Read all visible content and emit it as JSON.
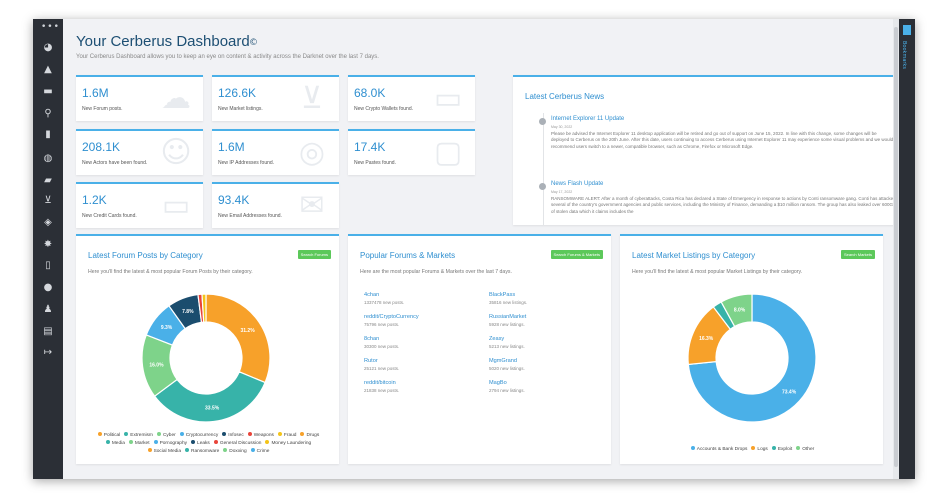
{
  "sidebar": {
    "dots": "•••",
    "icons": [
      "dashboard-icon",
      "bell-icon",
      "folder-icon",
      "search-icon",
      "book-icon",
      "bug-icon",
      "chat-icon",
      "cart-icon",
      "shield-icon",
      "forum-icon",
      "badge-icon",
      "comments-icon",
      "user-icon",
      "building-icon",
      "logout-icon"
    ]
  },
  "rightbar": {
    "label": "Bookmarks"
  },
  "header": {
    "title": "Your Cerberus Dashboard",
    "title_icon": "©",
    "subtitle": "Your Cerberus Dashboard allows you to keep an eye on content & activity across the Darknet over the last 7 days."
  },
  "stats": [
    {
      "value": "1.6M",
      "label": "New Forum posts.",
      "icon": "speech-bubble-icon"
    },
    {
      "value": "126.6K",
      "label": "New Market listings.",
      "icon": "cart-icon"
    },
    {
      "value": "68.0K",
      "label": "New Crypto Wallets found.",
      "icon": "wallet-icon"
    },
    {
      "value": "208.1K",
      "label": "New Actors have been found.",
      "icon": "users-icon"
    },
    {
      "value": "1.6M",
      "label": "New IP Addresses found.",
      "icon": "map-pin-icon"
    },
    {
      "value": "17.4K",
      "label": "New Pastes found.",
      "icon": "clipboard-icon"
    },
    {
      "value": "1.2K",
      "label": "New Credit Cards found.",
      "icon": "credit-card-icon"
    },
    {
      "value": "93.4K",
      "label": "New Email Addresses found.",
      "icon": "envelope-icon"
    }
  ],
  "news": {
    "title": "Latest Cerberus News",
    "items": [
      {
        "title": "Internet Explorer 11 Update",
        "date": "May 30, 2022",
        "body": "Please be advised the Internet Explorer 11 desktop application will be retired and go out of support on June 15, 2022. In line with this change, some changes will be deployed to Cerberus on the 20th June. After this date, users continuing to access Cerberus using Internet Explorer 11 may experience some visual problems and we would recommend users switch to a newer, compatible browser, such as Chrome, Firefox or Microsoft Edge."
      },
      {
        "title": "News Flash Update",
        "date": "May 17, 2022",
        "body": "RANSOMWARE ALERT: After a month of cyberattacks, Costa Rica has declared a State of Emergency in response to actions by Conti ransomware gang. Conti has attacked several of the country's government agencies and public services, including the Ministry of Finance, demanding a $10 million ransom. The group has also leaked over 600GB of stolen data which it claims includes the"
      }
    ]
  },
  "panels": {
    "forum": {
      "title": "Latest Forum Posts by Category",
      "button": "Search Forums",
      "desc": "Here you'll find the latest & most popular Forum Posts by their category."
    },
    "popular": {
      "title": "Popular Forums & Markets",
      "button": "Search Forums & Markets",
      "desc": "Here are the most popular Forums & Markets over the last 7 days.",
      "left": [
        {
          "name": "4chan",
          "count": "1337478 new posts."
        },
        {
          "name": "reddit/CryptoCurrency",
          "count": "75796 new posts."
        },
        {
          "name": "8chan",
          "count": "30300 new posts."
        },
        {
          "name": "Rutor",
          "count": "25121 new posts."
        },
        {
          "name": "reddit/bitcoin",
          "count": "21838 new posts."
        }
      ],
      "right": [
        {
          "name": "BlackPass",
          "count": "35816 new listings."
        },
        {
          "name": "RussianMarket",
          "count": "5928 new listings."
        },
        {
          "name": "Zeasy",
          "count": "5213 new listings."
        },
        {
          "name": "MgmGrand",
          "count": "5020 new listings."
        },
        {
          "name": "MagBo",
          "count": "2794 new listings."
        }
      ]
    },
    "market": {
      "title": "Latest Market Listings by Category",
      "button": "Search Markets",
      "desc": "Here you'll find the latest & most popular Market Listings by their category."
    }
  },
  "chart_data": [
    {
      "type": "pie",
      "title": "Latest Forum Posts by Category",
      "labels_shown": [
        "31.2%",
        "33.5%",
        "16.0%",
        "9.3%",
        "7.8%"
      ],
      "slices": [
        {
          "name": "Political",
          "value": 31.2,
          "color": "#f7a12a"
        },
        {
          "name": "Extremism",
          "value": 33.5,
          "color": "#37b3a9"
        },
        {
          "name": "Cyber",
          "value": 16.0,
          "color": "#7ed38a"
        },
        {
          "name": "Cryptocurrency",
          "value": 9.3,
          "color": "#4ab0e8"
        },
        {
          "name": "Infosec",
          "value": 7.8,
          "color": "#1b4d6e"
        },
        {
          "name": "Weapons",
          "value": 1.0,
          "color": "#e8443a"
        },
        {
          "name": "Fraud",
          "value": 1.0,
          "color": "#f4c418"
        }
      ],
      "legend": [
        {
          "name": "Political",
          "color": "#f7a12a"
        },
        {
          "name": "Extremism",
          "color": "#37b3a9"
        },
        {
          "name": "Cyber",
          "color": "#7ed38a"
        },
        {
          "name": "Cryptocurrency",
          "color": "#4ab0e8"
        },
        {
          "name": "Infosec",
          "color": "#1b4d6e"
        },
        {
          "name": "Weapons",
          "color": "#e8443a"
        },
        {
          "name": "Fraud",
          "color": "#f4c418"
        },
        {
          "name": "Drugs",
          "color": "#f7a12a"
        },
        {
          "name": "Media",
          "color": "#37b3a9"
        },
        {
          "name": "Market",
          "color": "#7ed38a"
        },
        {
          "name": "Pornography",
          "color": "#4ab0e8"
        },
        {
          "name": "Leaks",
          "color": "#1b4d6e"
        },
        {
          "name": "General Discussion",
          "color": "#e8443a"
        },
        {
          "name": "Money Laundering",
          "color": "#f4c418"
        },
        {
          "name": "Social Media",
          "color": "#f7a12a"
        },
        {
          "name": "Ransomware",
          "color": "#37b3a9"
        },
        {
          "name": "Doxxing",
          "color": "#7ed38a"
        },
        {
          "name": "Crime",
          "color": "#4ab0e8"
        }
      ]
    },
    {
      "type": "pie",
      "title": "Latest Market Listings by Category",
      "labels_shown": [
        "73.4%",
        "16.3%",
        "8.0%"
      ],
      "slices": [
        {
          "name": "Accounts & Bank Drops",
          "value": 73.4,
          "color": "#4ab0e8"
        },
        {
          "name": "Logs",
          "value": 16.3,
          "color": "#f7a12a"
        },
        {
          "name": "Exploit",
          "value": 2.3,
          "color": "#37b3a9"
        },
        {
          "name": "Other",
          "value": 8.0,
          "color": "#7ed38a"
        }
      ],
      "legend": [
        {
          "name": "Accounts & Bank Drops",
          "color": "#4ab0e8"
        },
        {
          "name": "Logs",
          "color": "#f7a12a"
        },
        {
          "name": "Exploit",
          "color": "#37b3a9"
        },
        {
          "name": "Other",
          "color": "#7ed38a"
        }
      ]
    }
  ]
}
